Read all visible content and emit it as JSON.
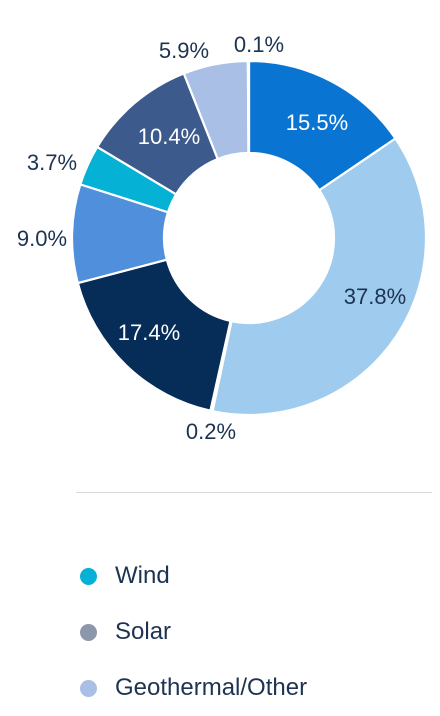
{
  "chart_data": {
    "type": "pie",
    "donut": true,
    "slices": [
      {
        "label": "15.5%",
        "value": 15.5,
        "color": "#0a74d2",
        "label_color": "#ffffff",
        "label_pos": "inside"
      },
      {
        "label": "37.8%",
        "value": 37.8,
        "color": "#9ecbee",
        "label_color": "#1d3352",
        "label_pos": "inside"
      },
      {
        "label": "0.2%",
        "value": 0.2,
        "color": "#8d97ab",
        "label_color": "#1d3352",
        "label_pos": "outside"
      },
      {
        "label": "17.4%",
        "value": 17.4,
        "color": "#052d58",
        "label_color": "#ffffff",
        "label_pos": "inside"
      },
      {
        "label": "9.0%",
        "value": 9.0,
        "color": "#4f8fdc",
        "label_color": "#1d3352",
        "label_pos": "outside"
      },
      {
        "label": "3.7%",
        "value": 3.7,
        "color": "#06b1d6",
        "label_color": "#1d3352",
        "label_pos": "outside"
      },
      {
        "label": "10.4%",
        "value": 10.4,
        "color": "#3c5a8b",
        "label_color": "#ffffff",
        "label_pos": "inside"
      },
      {
        "label": "5.9%",
        "value": 5.9,
        "color": "#a9bfe6",
        "label_color": "#1d3352",
        "label_pos": "outside"
      },
      {
        "label": "0.1%",
        "value": 0.1,
        "color": "#c7d3e6",
        "label_color": "#1d3352",
        "label_pos": "outside"
      }
    ],
    "legend": [
      {
        "name": "Wind",
        "color": "#06b1d6"
      },
      {
        "name": "Solar",
        "color": "#8d97ab"
      },
      {
        "name": "Geothermal/Other",
        "color": "#a9bfe6"
      }
    ],
    "legend_position": "bottom"
  }
}
